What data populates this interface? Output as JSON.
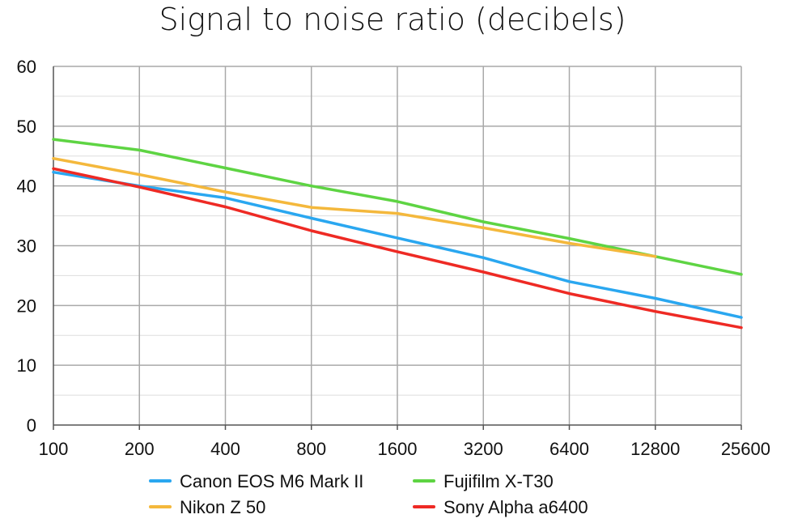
{
  "chart_data": {
    "type": "line",
    "title": "Signal to noise ratio (decibels)",
    "xlabel": "",
    "ylabel": "",
    "categories": [
      "100",
      "200",
      "400",
      "800",
      "1600",
      "3200",
      "6400",
      "12800",
      "25600"
    ],
    "ylim": [
      0,
      60
    ],
    "yticks": [
      "0",
      "10",
      "20",
      "30",
      "40",
      "50",
      "60"
    ],
    "grid": true,
    "legend_position": "bottom",
    "series": [
      {
        "name": "Canon EOS M6 Mark II",
        "color": "#2aa7f0",
        "values": [
          42.3,
          40.0,
          38.0,
          34.6,
          31.3,
          28.0,
          24.0,
          21.2,
          18.0
        ]
      },
      {
        "name": "Fujifilm X-T30",
        "color": "#5ed443",
        "values": [
          47.8,
          46.0,
          43.0,
          40.0,
          37.4,
          34.0,
          31.2,
          28.2,
          25.2
        ]
      },
      {
        "name": "Nikon Z 50",
        "color": "#f4b83c",
        "values": [
          44.6,
          41.9,
          39.0,
          36.4,
          35.4,
          33.0,
          30.4,
          28.2,
          null
        ]
      },
      {
        "name": "Sony Alpha a6400",
        "color": "#ee2a24",
        "values": [
          42.9,
          39.8,
          36.5,
          32.5,
          29.0,
          25.6,
          22.0,
          19.0,
          16.3
        ]
      }
    ]
  }
}
